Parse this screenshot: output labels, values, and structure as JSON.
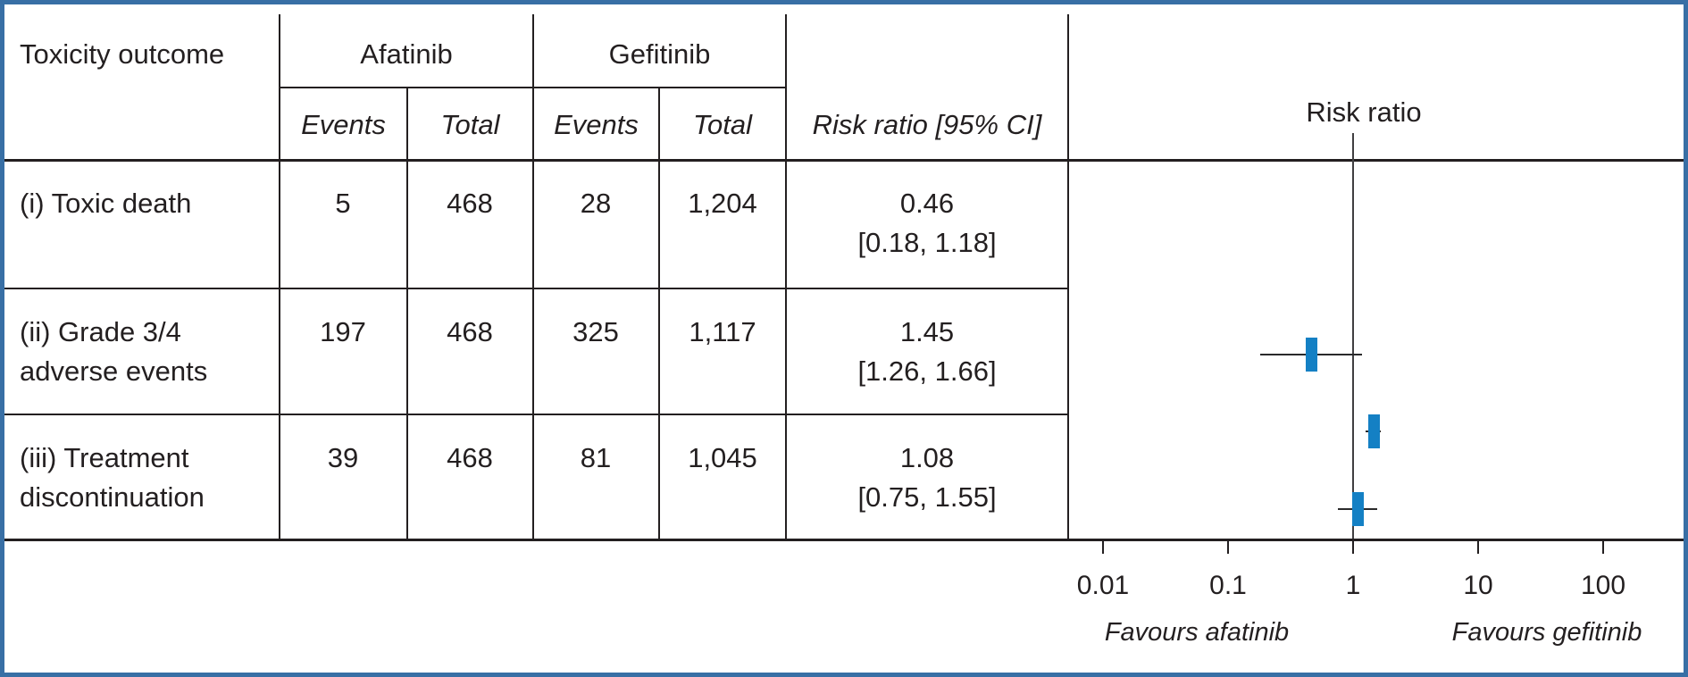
{
  "figure": {
    "frame_color": "#386fa5",
    "line_color": "#231f20",
    "marker_color": "#1480c4"
  },
  "table": {
    "header": {
      "outcome": "Toxicity outcome",
      "group_afatinib": "Afatinib",
      "group_gefitinib": "Gefitinib",
      "sub_events": "Events",
      "sub_total": "Total",
      "risk_ratio": "Risk ratio [95% CI]"
    },
    "rows": [
      {
        "outcome_lines": [
          "(i) Toxic death"
        ],
        "afatinib_events": "5",
        "afatinib_total": "468",
        "gefitinib_events": "28",
        "gefitinib_total": "1,204",
        "rr": "0.46",
        "ci": "[0.18, 1.18]"
      },
      {
        "outcome_lines": [
          "(ii) Grade 3/4",
          "adverse events"
        ],
        "afatinib_events": "197",
        "afatinib_total": "468",
        "gefitinib_events": "325",
        "gefitinib_total": "1,117",
        "rr": "1.45",
        "ci": "[1.26, 1.66]"
      },
      {
        "outcome_lines": [
          "(iii) Treatment",
          "discontinuation"
        ],
        "afatinib_events": "39",
        "afatinib_total": "468",
        "gefitinib_events": "81",
        "gefitinib_total": "1,045",
        "rr": "1.08",
        "ci": "[0.75, 1.55]"
      }
    ]
  },
  "plot": {
    "title": "Risk ratio",
    "favours_left": "Favours afatinib",
    "favours_right": "Favours gefitinib"
  },
  "chart_data": {
    "type": "forest_plot",
    "title": "Risk ratio",
    "x_scale": "log10",
    "x_ticks": [
      0.01,
      0.1,
      1,
      10,
      100
    ],
    "x_tick_labels": [
      "0.01",
      "0.1",
      "1",
      "10",
      "100"
    ],
    "reference_line": 1,
    "favours": {
      "left": "Favours afatinib",
      "right": "Favours gefitinib"
    },
    "outcomes": [
      {
        "label": "(i) Toxic death",
        "afatinib": {
          "events": 5,
          "total": 468
        },
        "gefitinib": {
          "events": 28,
          "total": 1204
        },
        "risk_ratio": 0.46,
        "ci_95": [
          0.18,
          1.18
        ]
      },
      {
        "label": "(ii) Grade 3/4 adverse events",
        "afatinib": {
          "events": 197,
          "total": 468
        },
        "gefitinib": {
          "events": 325,
          "total": 1117
        },
        "risk_ratio": 1.45,
        "ci_95": [
          1.26,
          1.66
        ]
      },
      {
        "label": "(iii) Treatment discontinuation",
        "afatinib": {
          "events": 39,
          "total": 468
        },
        "gefitinib": {
          "events": 81,
          "total": 1045
        },
        "risk_ratio": 1.08,
        "ci_95": [
          0.75,
          1.55
        ]
      }
    ]
  }
}
